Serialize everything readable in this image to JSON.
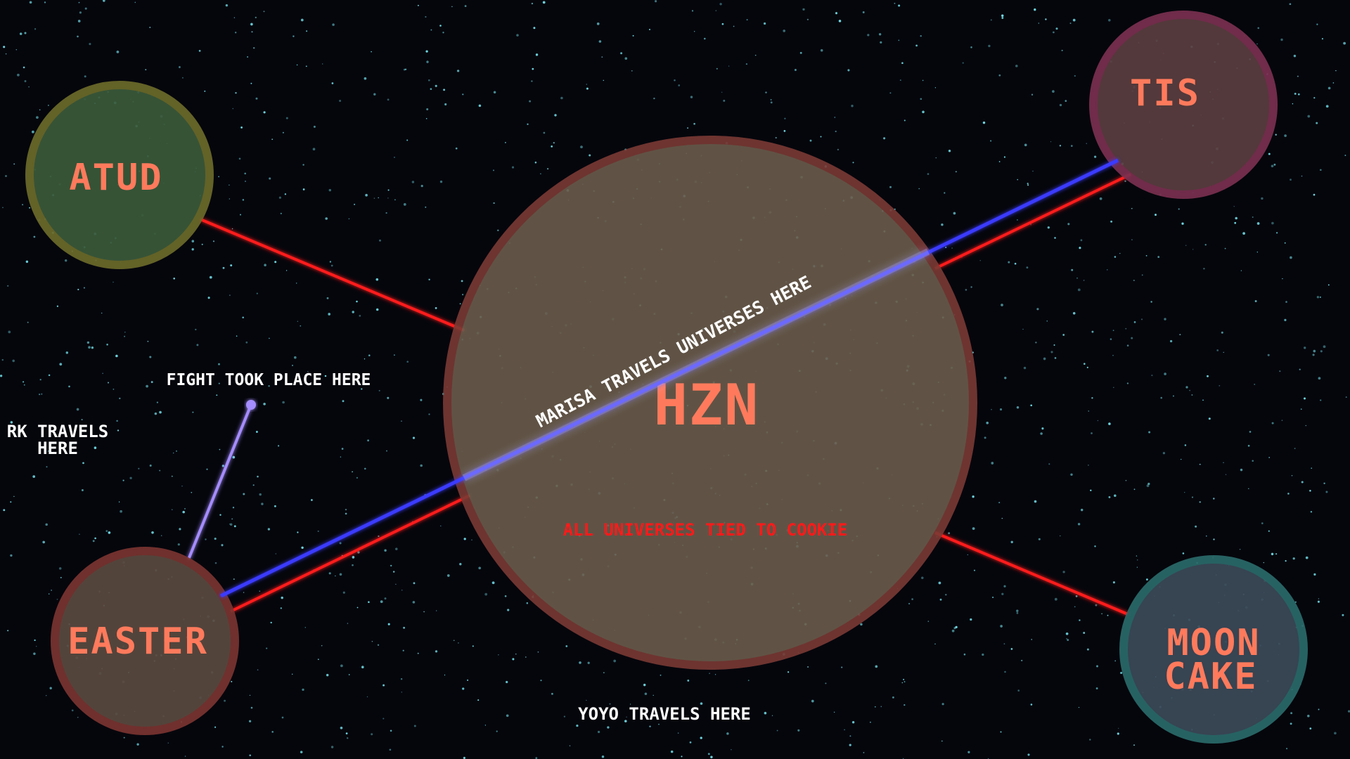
{
  "colors": {
    "background": "#05060c",
    "star": "#6fd6e0",
    "label": "#ff7a5c",
    "red_link": "#ff1a1a",
    "blue_link": "#3a3aff",
    "yellow_link": "#ffee33",
    "violet_link": "#a58cff",
    "note_text": "#ffffff",
    "warning_text": "#ff1a1a"
  },
  "planets": {
    "atud": {
      "label": "ATUD",
      "fill": "#3b5a3a",
      "border": "#6b6a2a"
    },
    "tis": {
      "label": "TIS",
      "fill": "#5a3e40",
      "border": "#7a3050"
    },
    "hzn": {
      "label": "HZN",
      "fill": "#6a5c4c",
      "border": "#7a3a34"
    },
    "easter": {
      "label": "EASTER",
      "fill": "#5a4a40",
      "border": "#7a3430"
    },
    "mooncake": {
      "label_line1": "MOON",
      "label_line2": "CAKE",
      "fill": "#3c4a58",
      "border": "#2a6a6a"
    }
  },
  "annotations": {
    "rk": {
      "line1": "RK TRAVELS",
      "line2": "HERE"
    },
    "fight": "FIGHT TOOK PLACE HERE",
    "marisa": "MARISA TRAVELS UNIVERSES HERE",
    "cookie": "ALL UNIVERSES TIED TO COOKIE",
    "yoyo": "YOYO TRAVELS HERE"
  },
  "routes": [
    {
      "name": "atud-hzn",
      "kind": "red"
    },
    {
      "name": "tis-hzn",
      "kind": "red"
    },
    {
      "name": "easter-hzn",
      "kind": "red"
    },
    {
      "name": "mooncake-hzn",
      "kind": "red"
    },
    {
      "name": "easter-tis",
      "kind": "blue"
    },
    {
      "name": "atud-easter",
      "kind": "yellow"
    },
    {
      "name": "easter-mooncake",
      "kind": "yellow"
    },
    {
      "name": "easter-fight",
      "kind": "violet"
    }
  ]
}
